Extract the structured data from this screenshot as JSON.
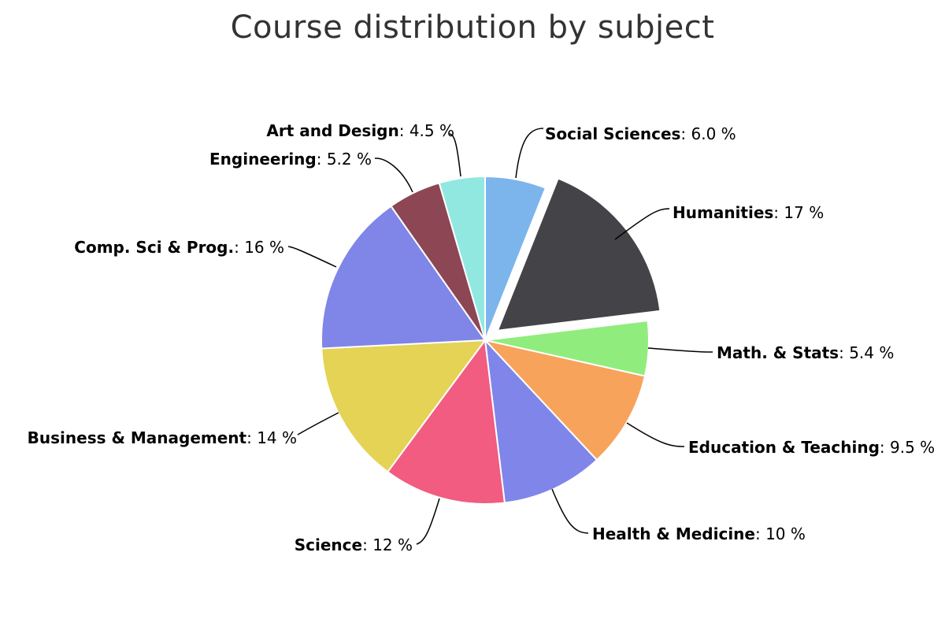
{
  "chart_data": {
    "type": "pie",
    "title": "Course distribution by subject",
    "slices": [
      {
        "name": "Social Sciences",
        "value": 6.0,
        "label": "6.0 %",
        "color": "#7cb5ec",
        "exploded": false
      },
      {
        "name": "Humanities",
        "value": 17,
        "label": "17 %",
        "color": "#434348",
        "exploded": true
      },
      {
        "name": "Math. & Stats",
        "value": 5.4,
        "label": "5.4 %",
        "color": "#90ed7d",
        "exploded": false
      },
      {
        "name": "Education & Teaching",
        "value": 9.5,
        "label": "9.5 %",
        "color": "#f7a35c",
        "exploded": false
      },
      {
        "name": "Health & Medicine",
        "value": 10,
        "label": "10 %",
        "color": "#8085e9",
        "exploded": false
      },
      {
        "name": "Science",
        "value": 12,
        "label": "12 %",
        "color": "#f15c80",
        "exploded": false
      },
      {
        "name": "Business & Management",
        "value": 14,
        "label": "14 %",
        "color": "#e4d354",
        "exploded": false
      },
      {
        "name": "Comp. Sci & Prog.",
        "value": 16,
        "label": "16 %",
        "color": "#8085e8",
        "exploded": false
      },
      {
        "name": "Engineering",
        "value": 5.2,
        "label": "5.2 %",
        "color": "#8d4653",
        "exploded": false
      },
      {
        "name": "Art and Design",
        "value": 4.5,
        "label": "4.5 %",
        "color": "#91e8e1",
        "exploded": false
      }
    ]
  }
}
